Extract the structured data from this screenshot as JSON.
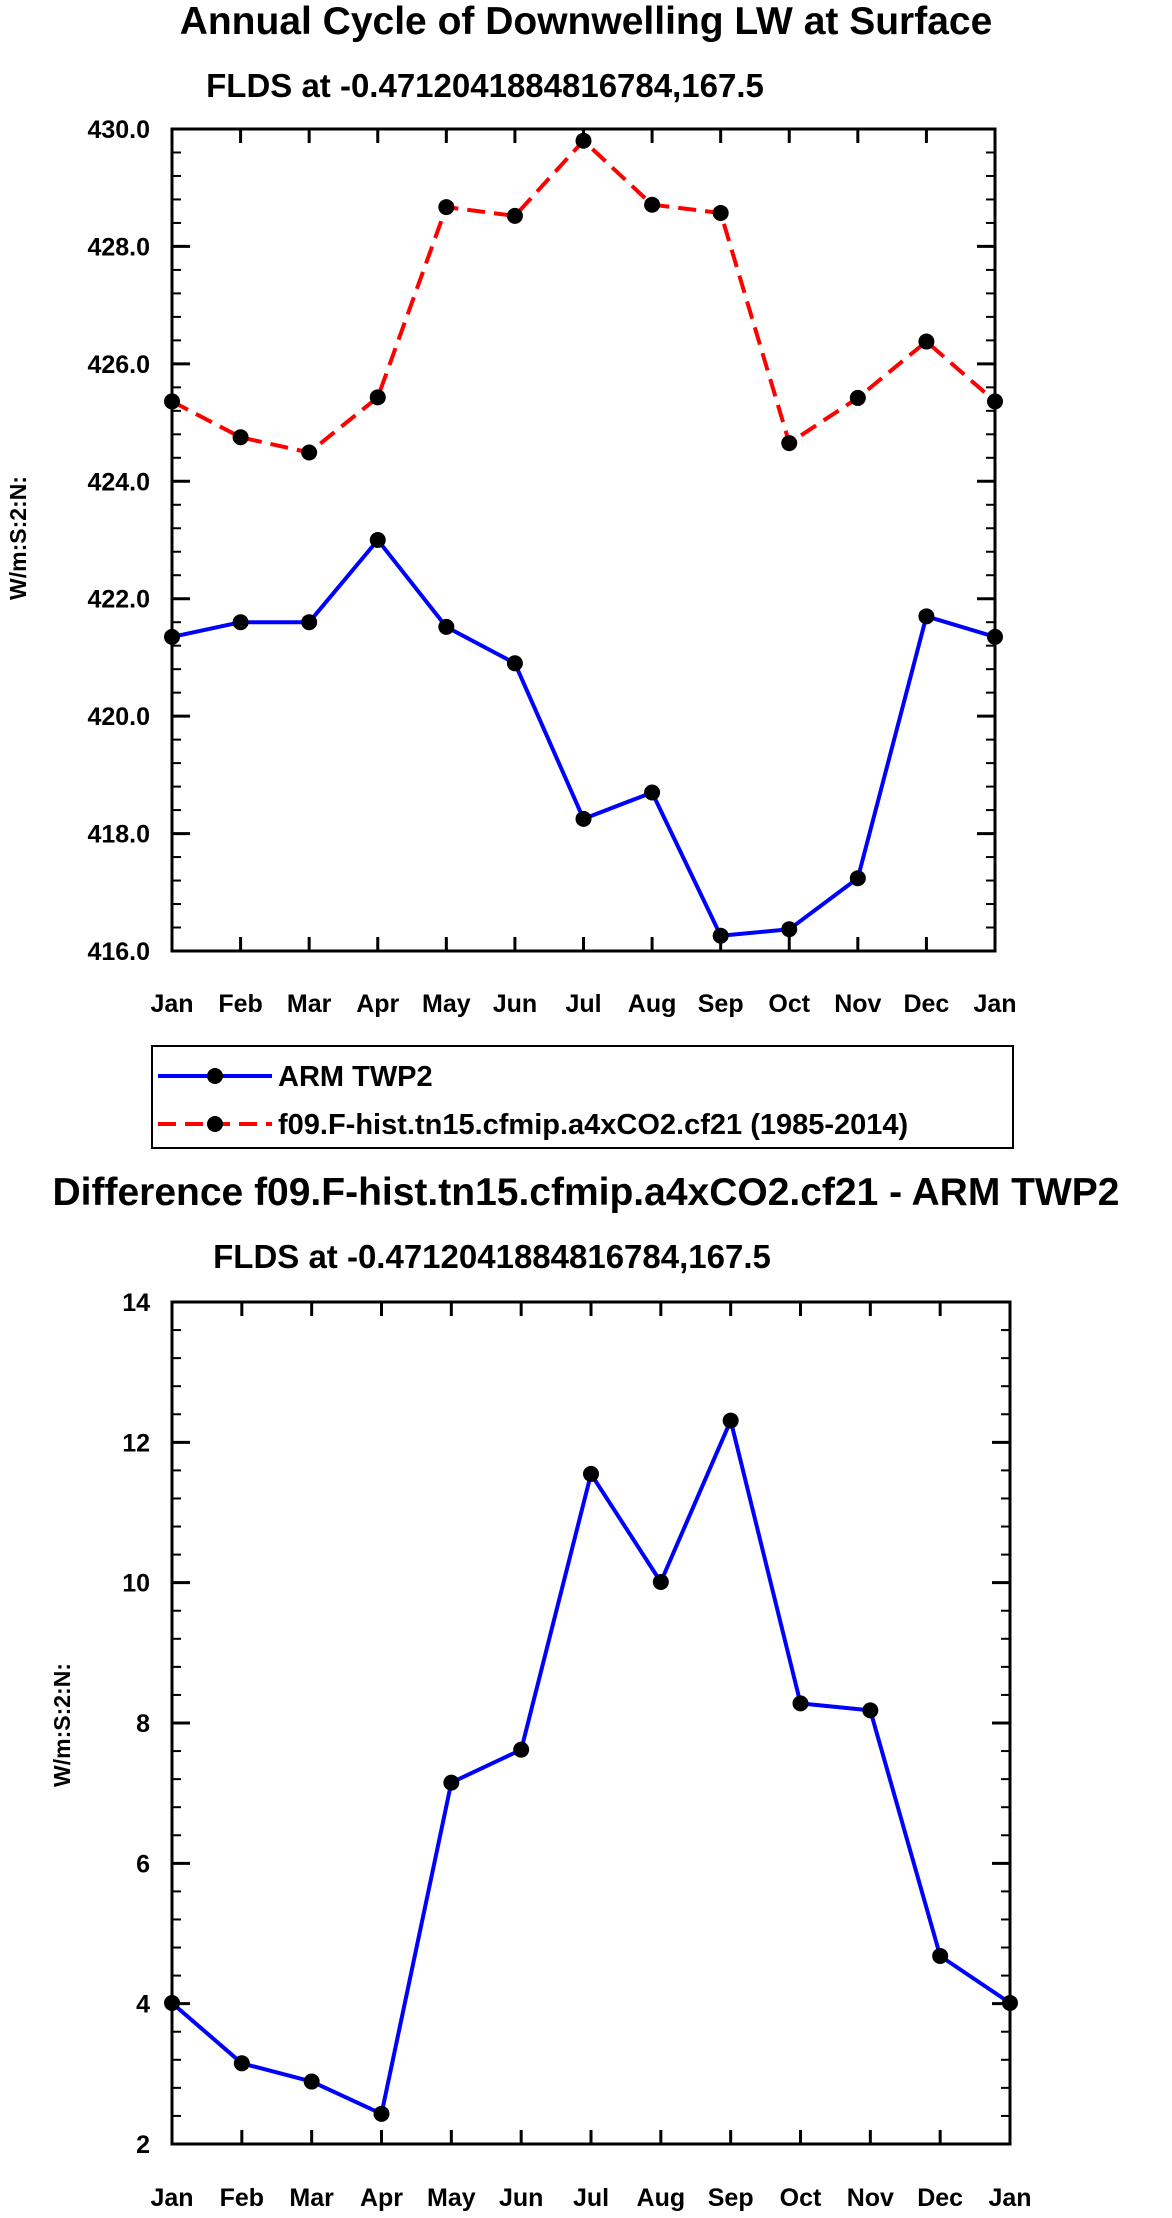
{
  "chart_data": [
    {
      "type": "line",
      "title": "Annual Cycle of Downwelling LW at Surface",
      "subtitle": "FLDS at -0.4712041884816784,167.5",
      "ylabel": "W/m:S:2:N:",
      "categories": [
        "Jan",
        "Feb",
        "Mar",
        "Apr",
        "May",
        "Jun",
        "Jul",
        "Aug",
        "Sep",
        "Oct",
        "Nov",
        "Dec",
        "Jan"
      ],
      "ylim": [
        416.0,
        430.0
      ],
      "yticks": [
        "416.0",
        "418.0",
        "420.0",
        "422.0",
        "424.0",
        "426.0",
        "428.0",
        "430.0"
      ],
      "series": [
        {
          "name": "ARM TWP2",
          "color": "#0000ff",
          "dash": "solid",
          "values": [
            421.35,
            421.6,
            421.6,
            423.0,
            421.52,
            420.9,
            418.25,
            418.7,
            416.26,
            416.37,
            417.24,
            421.7,
            421.35
          ]
        },
        {
          "name": "f09.F-hist.tn15.cfmip.a4xCO2.cf21 (1985-2014)",
          "color": "#ff0000",
          "dash": "dashed",
          "values": [
            425.36,
            424.75,
            424.49,
            425.43,
            428.67,
            428.52,
            429.8,
            428.71,
            428.57,
            424.65,
            425.42,
            426.38,
            425.36
          ]
        }
      ],
      "legend": [
        "ARM TWP2",
        "f09.F-hist.tn15.cfmip.a4xCO2.cf21 (1985-2014)"
      ]
    },
    {
      "type": "line",
      "title": "Difference f09.F-hist.tn15.cfmip.a4xCO2.cf21 - ARM TWP2",
      "subtitle": "FLDS at -0.4712041884816784,167.5",
      "ylabel": "W/m:S:2:N:",
      "categories": [
        "Jan",
        "Feb",
        "Mar",
        "Apr",
        "May",
        "Jun",
        "Jul",
        "Aug",
        "Sep",
        "Oct",
        "Nov",
        "Dec",
        "Jan"
      ],
      "ylim": [
        2,
        14
      ],
      "yticks": [
        "2",
        "4",
        "6",
        "8",
        "10",
        "12",
        "14"
      ],
      "series": [
        {
          "name": "Difference",
          "color": "#0000ff",
          "dash": "solid",
          "values": [
            4.01,
            3.15,
            2.89,
            2.43,
            7.15,
            7.62,
            11.55,
            10.01,
            12.31,
            8.28,
            8.18,
            4.68,
            4.01
          ]
        }
      ]
    }
  ]
}
